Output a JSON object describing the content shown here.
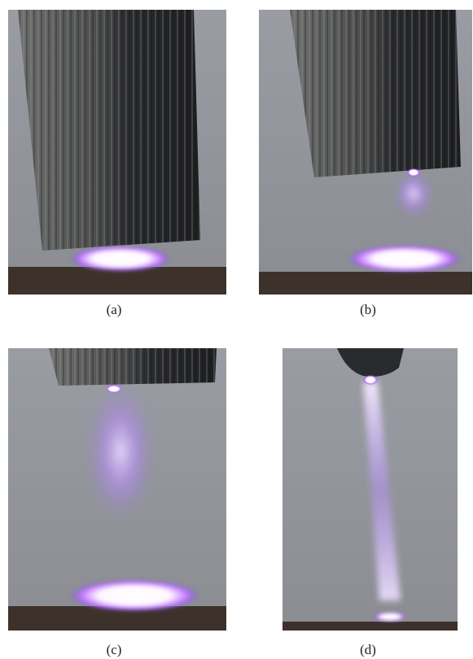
{
  "figure": {
    "panels": [
      {
        "label": "(a)"
      },
      {
        "label": "(b)"
      },
      {
        "label": "(c)"
      },
      {
        "label": "(d)"
      }
    ]
  }
}
